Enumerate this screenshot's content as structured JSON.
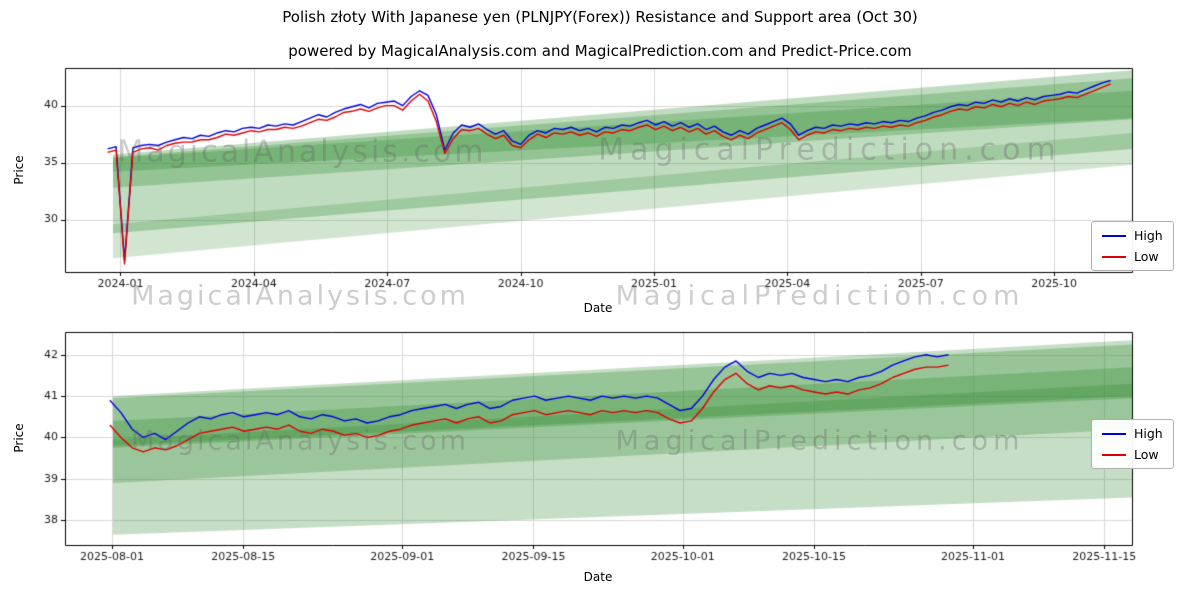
{
  "header": {
    "title": "Polish złoty With Japanese yen (PLNJPY(Forex)) Resistance and Support area (Oct 30)",
    "subtitle": "powered by MagicalAnalysis.com and MagicalPrediction.com and Predict-Price.com"
  },
  "watermarks": {
    "left": "MagicalAnalysis.com",
    "right": "MagicalPrediction.com"
  },
  "legend": {
    "high": "High",
    "low": "Low"
  },
  "colors": {
    "high": "#0000dd",
    "low": "#dd0000",
    "band": "#2d8a2d",
    "grid": "#d9d9d9",
    "axis": "#000000",
    "tick_text": "#1a1a1a"
  },
  "chart_data": [
    {
      "type": "line",
      "xlabel": "Date",
      "ylabel": "Price",
      "ylim": [
        25.4,
        43.3
      ],
      "yticks": [
        30,
        35,
        40
      ],
      "xticks": [
        {
          "t": 0.052,
          "label": "2024-01"
        },
        {
          "t": 0.177,
          "label": "2024-04"
        },
        {
          "t": 0.302,
          "label": "2024-07"
        },
        {
          "t": 0.427,
          "label": "2024-10"
        },
        {
          "t": 0.552,
          "label": "2025-01"
        },
        {
          "t": 0.677,
          "label": "2025-04"
        },
        {
          "t": 0.802,
          "label": "2025-07"
        },
        {
          "t": 0.927,
          "label": "2025-10"
        }
      ],
      "x_range": [
        0.04,
        0.98
      ],
      "bands": [
        {
          "x0": 0.045,
          "top0": 35.7,
          "bot0": 28.8,
          "x1": 1.0,
          "top1": 43.1,
          "bot1": 36.2,
          "alpha": 0.3
        },
        {
          "x0": 0.045,
          "top0": 35.5,
          "bot0": 32.8,
          "x1": 1.0,
          "top1": 42.4,
          "bot1": 38.8,
          "alpha": 0.3
        },
        {
          "x0": 0.045,
          "top0": 29.6,
          "bot0": 26.6,
          "x1": 1.0,
          "top1": 37.6,
          "bot1": 34.8,
          "alpha": 0.22
        },
        {
          "x0": 0.045,
          "top0": 35.4,
          "bot0": 34.2,
          "x1": 1.0,
          "top1": 41.3,
          "bot1": 38.9,
          "alpha": 0.3
        }
      ],
      "series": [
        {
          "name": "High",
          "color_key": "high",
          "values": [
            36.2,
            36.4,
            26.4,
            36.3,
            36.5,
            36.6,
            36.5,
            36.8,
            37.0,
            37.2,
            37.1,
            37.4,
            37.3,
            37.6,
            37.8,
            37.7,
            38.0,
            38.1,
            38.0,
            38.3,
            38.2,
            38.4,
            38.3,
            38.6,
            38.9,
            39.2,
            39.0,
            39.4,
            39.7,
            39.9,
            40.1,
            39.8,
            40.2,
            40.3,
            40.4,
            40.0,
            40.8,
            41.3,
            40.9,
            39.2,
            36.1,
            37.6,
            38.3,
            38.1,
            38.4,
            37.9,
            37.5,
            37.8,
            36.9,
            36.6,
            37.4,
            37.8,
            37.6,
            38.0,
            37.9,
            38.1,
            37.8,
            38.0,
            37.7,
            38.1,
            38.0,
            38.3,
            38.2,
            38.5,
            38.7,
            38.3,
            38.6,
            38.2,
            38.5,
            38.1,
            38.4,
            37.9,
            38.2,
            37.7,
            37.4,
            37.8,
            37.5,
            38.0,
            38.3,
            38.6,
            38.9,
            38.4,
            37.4,
            37.8,
            38.1,
            38.0,
            38.3,
            38.2,
            38.4,
            38.3,
            38.5,
            38.4,
            38.6,
            38.5,
            38.7,
            38.6,
            38.9,
            39.1,
            39.4,
            39.6,
            39.9,
            40.1,
            40.0,
            40.3,
            40.2,
            40.5,
            40.3,
            40.6,
            40.4,
            40.7,
            40.5,
            40.8,
            40.9,
            41.0,
            41.2,
            41.1,
            41.4,
            41.7,
            42.0,
            42.2
          ]
        },
        {
          "name": "Low",
          "color_key": "low",
          "values": [
            35.9,
            36.1,
            26.1,
            35.9,
            36.2,
            36.3,
            36.1,
            36.5,
            36.7,
            36.8,
            36.8,
            37.0,
            37.0,
            37.2,
            37.5,
            37.4,
            37.6,
            37.8,
            37.7,
            37.9,
            37.9,
            38.1,
            38.0,
            38.2,
            38.5,
            38.8,
            38.7,
            39.0,
            39.4,
            39.5,
            39.7,
            39.5,
            39.8,
            40.0,
            40.0,
            39.6,
            40.4,
            41.0,
            40.4,
            38.6,
            35.8,
            37.1,
            37.9,
            37.8,
            38.0,
            37.5,
            37.1,
            37.4,
            36.5,
            36.3,
            37.0,
            37.5,
            37.2,
            37.6,
            37.5,
            37.7,
            37.4,
            37.6,
            37.3,
            37.7,
            37.6,
            37.9,
            37.8,
            38.1,
            38.3,
            37.9,
            38.2,
            37.8,
            38.1,
            37.7,
            38.0,
            37.5,
            37.8,
            37.3,
            37.0,
            37.4,
            37.1,
            37.6,
            37.9,
            38.2,
            38.5,
            37.9,
            37.0,
            37.4,
            37.7,
            37.6,
            37.9,
            37.8,
            38.0,
            37.9,
            38.1,
            38.0,
            38.2,
            38.1,
            38.3,
            38.2,
            38.5,
            38.7,
            39.0,
            39.2,
            39.5,
            39.7,
            39.6,
            39.9,
            39.8,
            40.1,
            39.9,
            40.2,
            40.0,
            40.3,
            40.1,
            40.4,
            40.5,
            40.6,
            40.8,
            40.7,
            41.0,
            41.3,
            41.6,
            41.9
          ]
        }
      ]
    },
    {
      "type": "line",
      "xlabel": "Date",
      "ylabel": "Price",
      "ylim": [
        37.4,
        42.55
      ],
      "yticks": [
        38,
        39,
        40,
        41,
        42
      ],
      "xticks": [
        {
          "t": 0.044,
          "label": "2025-08-01"
        },
        {
          "t": 0.167,
          "label": "2025-08-15"
        },
        {
          "t": 0.316,
          "label": "2025-09-01"
        },
        {
          "t": 0.439,
          "label": "2025-09-15"
        },
        {
          "t": 0.579,
          "label": "2025-10-01"
        },
        {
          "t": 0.702,
          "label": "2025-10-15"
        },
        {
          "t": 0.851,
          "label": "2025-11-01"
        },
        {
          "t": 0.974,
          "label": "2025-11-15"
        }
      ],
      "x_range": [
        0.042,
        0.828
      ],
      "bands": [
        {
          "x0": 0.045,
          "top0": 41.0,
          "bot0": 37.65,
          "x1": 1.0,
          "top1": 42.35,
          "bot1": 38.55,
          "alpha": 0.28
        },
        {
          "x0": 0.045,
          "top0": 40.95,
          "bot0": 39.75,
          "x1": 1.0,
          "top1": 42.25,
          "bot1": 40.95,
          "alpha": 0.3
        },
        {
          "x0": 0.045,
          "top0": 39.95,
          "bot0": 38.9,
          "x1": 1.0,
          "top1": 41.3,
          "bot1": 40.2,
          "alpha": 0.28
        },
        {
          "x0": 0.045,
          "top0": 40.4,
          "bot0": 39.8,
          "x1": 1.0,
          "top1": 41.7,
          "bot1": 41.0,
          "alpha": 0.3
        }
      ],
      "series": [
        {
          "name": "High",
          "color_key": "high",
          "values": [
            40.9,
            40.6,
            40.2,
            40.0,
            40.1,
            39.95,
            40.15,
            40.35,
            40.5,
            40.45,
            40.55,
            40.6,
            40.5,
            40.55,
            40.6,
            40.55,
            40.65,
            40.5,
            40.45,
            40.55,
            40.5,
            40.4,
            40.45,
            40.35,
            40.4,
            40.5,
            40.55,
            40.65,
            40.7,
            40.75,
            40.8,
            40.7,
            40.8,
            40.85,
            40.7,
            40.75,
            40.9,
            40.95,
            41.0,
            40.9,
            40.95,
            41.0,
            40.95,
            40.9,
            41.0,
            40.95,
            41.0,
            40.95,
            41.0,
            40.95,
            40.8,
            40.65,
            40.7,
            41.0,
            41.4,
            41.7,
            41.85,
            41.6,
            41.45,
            41.55,
            41.5,
            41.55,
            41.45,
            41.4,
            41.35,
            41.4,
            41.35,
            41.45,
            41.5,
            41.6,
            41.75,
            41.85,
            41.95,
            42.0,
            41.95,
            42.0
          ]
        },
        {
          "name": "Low",
          "color_key": "low",
          "values": [
            40.3,
            40.0,
            39.75,
            39.65,
            39.75,
            39.7,
            39.8,
            39.95,
            40.1,
            40.15,
            40.2,
            40.25,
            40.15,
            40.2,
            40.25,
            40.2,
            40.3,
            40.15,
            40.1,
            40.2,
            40.15,
            40.05,
            40.1,
            40.0,
            40.05,
            40.15,
            40.2,
            40.3,
            40.35,
            40.4,
            40.45,
            40.35,
            40.45,
            40.5,
            40.35,
            40.4,
            40.55,
            40.6,
            40.65,
            40.55,
            40.6,
            40.65,
            40.6,
            40.55,
            40.65,
            40.6,
            40.65,
            40.6,
            40.65,
            40.6,
            40.45,
            40.35,
            40.4,
            40.7,
            41.1,
            41.4,
            41.55,
            41.3,
            41.15,
            41.25,
            41.2,
            41.25,
            41.15,
            41.1,
            41.05,
            41.1,
            41.05,
            41.15,
            41.2,
            41.3,
            41.45,
            41.55,
            41.65,
            41.7,
            41.7,
            41.75
          ]
        }
      ]
    }
  ]
}
